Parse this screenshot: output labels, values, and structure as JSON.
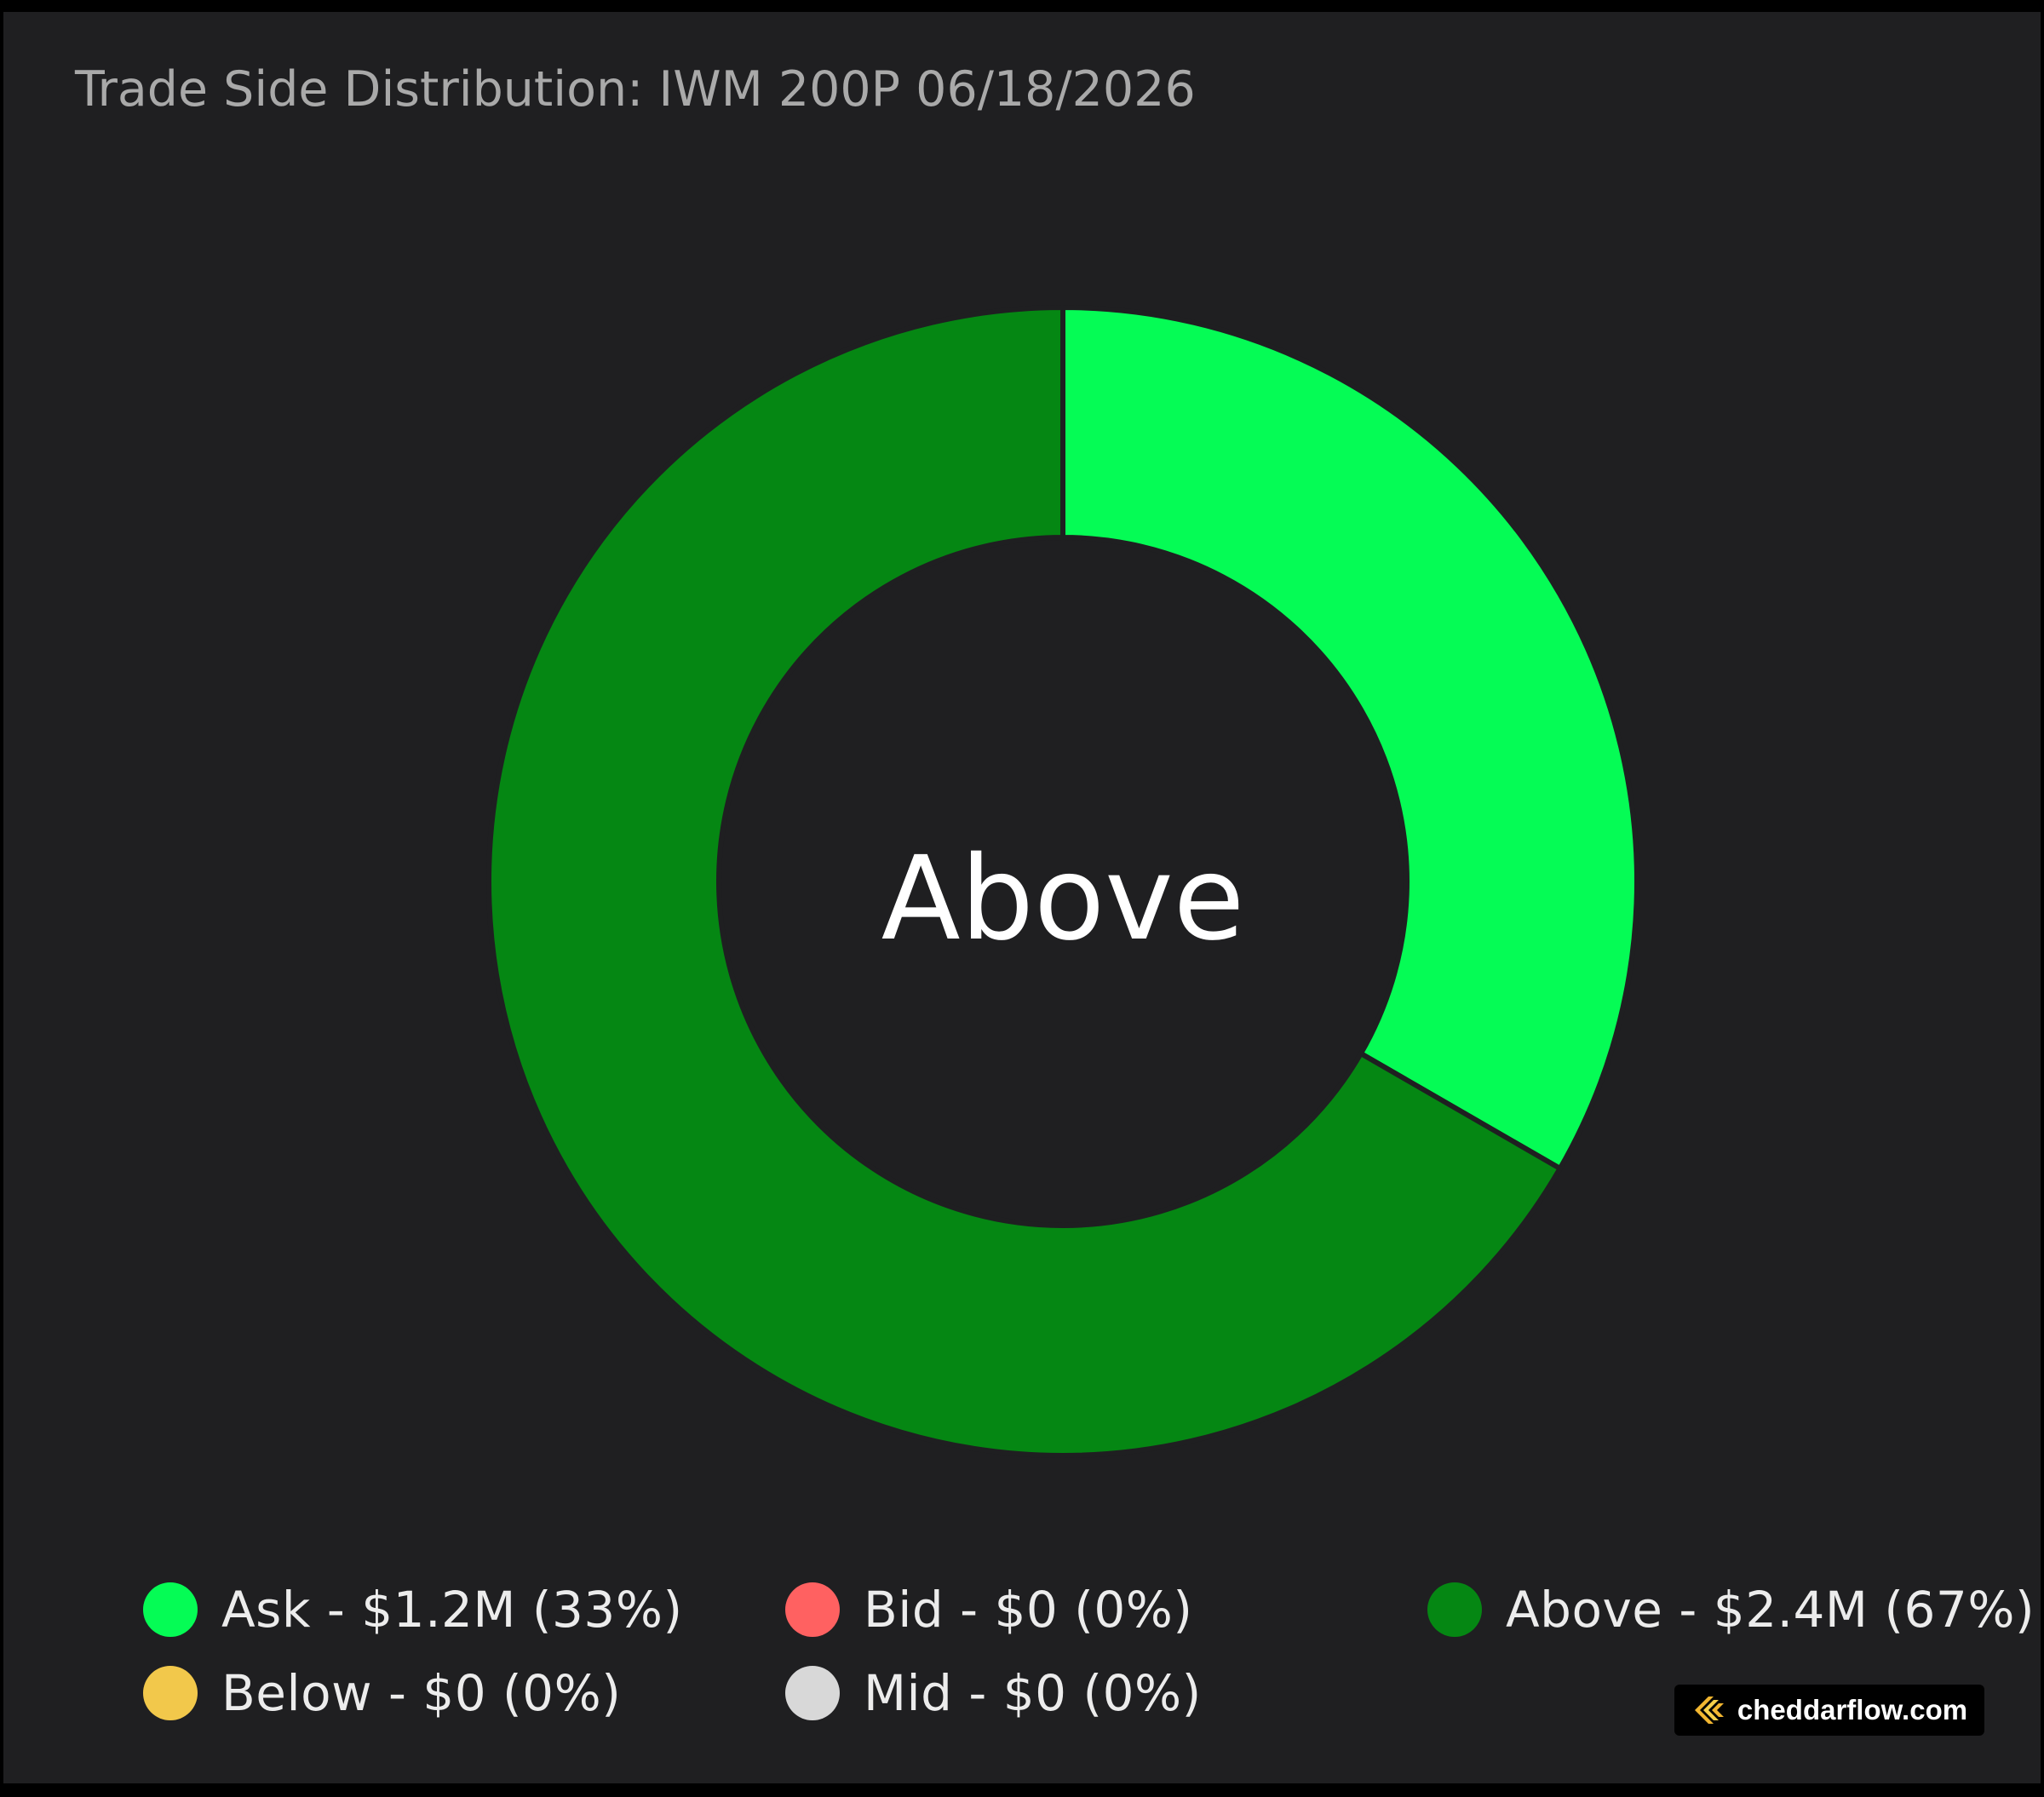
{
  "title": "Trade Side Distribution: IWM 200P 06/18/2026",
  "center_label": "Above",
  "colors": {
    "background": "#1f1f21",
    "ask": "#05fc55",
    "bid": "#ff6161",
    "above": "#058713",
    "below": "#f2c84b",
    "mid": "#d8d8d8"
  },
  "chart_data": {
    "type": "pie",
    "title": "Trade Side Distribution: IWM 200P 06/18/2026",
    "center_text": "Above",
    "slices": [
      {
        "name": "Ask",
        "value": 1.2,
        "percent": 33,
        "color": "#05fc55"
      },
      {
        "name": "Bid",
        "value": 0,
        "percent": 0,
        "color": "#ff6161"
      },
      {
        "name": "Above",
        "value": 2.4,
        "percent": 67,
        "color": "#058713"
      },
      {
        "name": "Below",
        "value": 0,
        "percent": 0,
        "color": "#f2c84b"
      },
      {
        "name": "Mid",
        "value": 0,
        "percent": 0,
        "color": "#d8d8d8"
      }
    ],
    "legend_placement": "bottom"
  },
  "legend": [
    {
      "label": "Ask - $1.2M (33%)",
      "color": "#05fc55"
    },
    {
      "label": "Bid - $0 (0%)",
      "color": "#ff6161"
    },
    {
      "label": "Above - $2.4M (67%)",
      "color": "#058713"
    },
    {
      "label": "Below - $0 (0%)",
      "color": "#f2c84b"
    },
    {
      "label": "Mid - $0 (0%)",
      "color": "#d8d8d8"
    }
  ],
  "brand": {
    "text": "cheddarflow.com",
    "icon": "cheddarflow-logo-icon"
  }
}
